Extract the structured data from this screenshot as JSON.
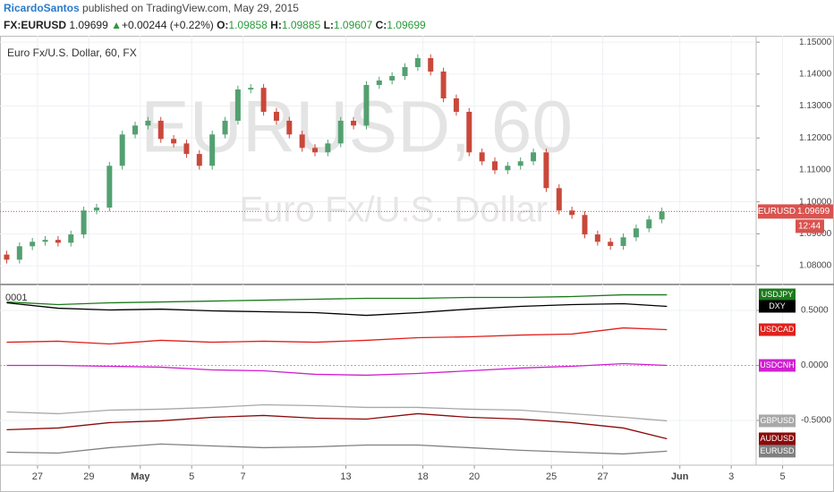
{
  "header": {
    "author": "RicardoSantos",
    "published": "published on TradingView.com, May 29, 2015",
    "symbol": "FX:EURUSD",
    "last": "1.09699",
    "change": "+0.00244 (+0.22%)",
    "o_label": "O:",
    "open": "1.09858",
    "h_label": "H:",
    "high": "1.09885",
    "l_label": "L:",
    "low": "1.09607",
    "c_label": "C:",
    "close": "1.09699"
  },
  "chart_data": [
    {
      "type": "candlestick",
      "title": "Euro Fx/U.S. Dollar, 60, FX",
      "watermark": "EURUSD, 60",
      "watermark_sub": "Euro Fx/U.S. Dollar",
      "up_color": "#53a070",
      "down_color": "#c9483a",
      "x": [
        -1.2,
        -0.7,
        -0.2,
        0.3,
        0.8,
        1.3,
        1.8,
        2.3,
        2.8,
        3.3,
        3.8,
        4.3,
        4.8,
        5.3,
        5.8,
        6.3,
        6.8,
        7.3,
        7.8,
        8.3,
        8.8,
        9.3,
        9.8,
        10.3,
        10.8,
        11.3,
        11.8,
        12.3,
        12.8,
        13.3,
        13.8,
        14.3,
        14.8,
        15.3,
        15.8,
        16.3,
        16.8,
        17.3,
        17.8,
        18.3,
        18.8,
        19.3,
        19.8,
        20.3,
        20.8,
        21.3,
        21.8,
        22.3,
        22.8,
        23.3,
        23.8,
        24.3
      ],
      "open": [
        1.0835,
        1.0819,
        1.0861,
        1.0875,
        1.0881,
        1.0872,
        1.0898,
        1.0973,
        1.0982,
        1.1113,
        1.1211,
        1.1239,
        1.1254,
        1.1197,
        1.1183,
        1.115,
        1.1113,
        1.1211,
        1.1254,
        1.1352,
        1.1357,
        1.1282,
        1.1254,
        1.1211,
        1.1169,
        1.1155,
        1.1183,
        1.1254,
        1.1239,
        1.1366,
        1.138,
        1.1394,
        1.1422,
        1.145,
        1.1408,
        1.1324,
        1.1282,
        1.1155,
        1.1127,
        1.1099,
        1.1113,
        1.1127,
        1.1155,
        1.1043,
        1.0973,
        1.0959,
        1.0898,
        1.0875,
        1.0862,
        1.0889,
        1.0917,
        1.0945
      ],
      "high": [
        1.0847,
        1.0873,
        1.0887,
        1.0893,
        1.0893,
        1.091,
        1.0985,
        1.0994,
        1.1125,
        1.1223,
        1.1251,
        1.1266,
        1.1266,
        1.1209,
        1.1195,
        1.1162,
        1.1223,
        1.1266,
        1.1364,
        1.1369,
        1.1369,
        1.1294,
        1.1266,
        1.1223,
        1.1181,
        1.1195,
        1.1266,
        1.1266,
        1.1378,
        1.1392,
        1.1406,
        1.1434,
        1.1462,
        1.1462,
        1.142,
        1.1336,
        1.1294,
        1.1167,
        1.1139,
        1.1125,
        1.1139,
        1.1167,
        1.1167,
        1.1055,
        1.0985,
        1.0971,
        1.091,
        1.0887,
        1.0901,
        1.0929,
        1.0957,
        1.0982
      ],
      "low": [
        1.0807,
        1.0807,
        1.0849,
        1.0863,
        1.086,
        1.086,
        1.0886,
        1.0961,
        1.097,
        1.1101,
        1.1199,
        1.1227,
        1.1185,
        1.1171,
        1.1138,
        1.1101,
        1.1101,
        1.1199,
        1.1242,
        1.134,
        1.127,
        1.1242,
        1.1199,
        1.1157,
        1.1143,
        1.1143,
        1.1171,
        1.1227,
        1.1227,
        1.1354,
        1.1368,
        1.1382,
        1.141,
        1.1396,
        1.1312,
        1.127,
        1.1143,
        1.1115,
        1.1087,
        1.1087,
        1.1101,
        1.1115,
        1.1031,
        1.0961,
        1.0947,
        1.0886,
        1.0863,
        1.085,
        1.085,
        1.0877,
        1.0905,
        1.0933
      ],
      "close": [
        1.0819,
        1.0861,
        1.0875,
        1.0881,
        1.0872,
        1.0898,
        1.0973,
        1.0982,
        1.1113,
        1.1211,
        1.1239,
        1.1254,
        1.1197,
        1.1183,
        1.115,
        1.1113,
        1.1211,
        1.1254,
        1.1352,
        1.1357,
        1.1282,
        1.1254,
        1.1211,
        1.1169,
        1.1155,
        1.1183,
        1.1254,
        1.1239,
        1.1366,
        1.138,
        1.1394,
        1.1422,
        1.145,
        1.1408,
        1.1324,
        1.1282,
        1.1155,
        1.1127,
        1.1099,
        1.1113,
        1.1127,
        1.1155,
        1.1043,
        1.0973,
        1.0959,
        1.0898,
        1.0875,
        1.0862,
        1.0889,
        1.0917,
        1.0945,
        1.097
      ],
      "last_symbol": "EURUSD",
      "last_price": 1.09699,
      "countdown": "12:44",
      "last_color": "#d9534f",
      "xlim": [
        -1.46,
        31.0
      ],
      "ylim": [
        1.0747,
        1.152
      ],
      "yticks": [
        {
          "value": 1.08,
          "label": "1.08000"
        },
        {
          "value": 1.09,
          "label": "1.09000"
        },
        {
          "value": 1.1,
          "label": "1.10000"
        },
        {
          "value": 1.11,
          "label": "1.11000"
        },
        {
          "value": 1.12,
          "label": "1.12000"
        },
        {
          "value": 1.13,
          "label": "1.13000"
        },
        {
          "value": 1.14,
          "label": "1.14000"
        },
        {
          "value": 1.15,
          "label": "1.15000"
        }
      ],
      "grid": true
    },
    {
      "type": "line",
      "label": "0001",
      "x": [
        -1.2,
        0.8,
        2.8,
        4.8,
        6.8,
        8.8,
        10.8,
        12.8,
        14.8,
        16.8,
        18.8,
        20.8,
        22.8,
        24.5
      ],
      "series": [
        {
          "name": "USDJPY",
          "color": "#1b7a1b",
          "values": [
            0.577,
            0.553,
            0.569,
            0.577,
            0.585,
            0.593,
            0.602,
            0.61,
            0.61,
            0.618,
            0.618,
            0.626,
            0.642,
            0.642
          ]
        },
        {
          "name": "DXY",
          "color": "#000000",
          "values": [
            0.569,
            0.52,
            0.504,
            0.512,
            0.496,
            0.488,
            0.48,
            0.455,
            0.48,
            0.512,
            0.537,
            0.553,
            0.561,
            0.537
          ]
        },
        {
          "name": "USDCAD",
          "color": "#e0201b",
          "values": [
            0.211,
            0.22,
            0.195,
            0.228,
            0.211,
            0.22,
            0.211,
            0.228,
            0.252,
            0.26,
            0.276,
            0.285,
            0.341,
            0.325
          ]
        },
        {
          "name": "USDCNH",
          "color": "#d020d0",
          "values": [
            0,
            0,
            -0.008,
            -0.016,
            -0.041,
            -0.049,
            -0.081,
            -0.089,
            -0.073,
            -0.049,
            -0.024,
            -0.008,
            0.016,
            0
          ]
        },
        {
          "name": "GBPUSD",
          "color": "#a8a8a8",
          "values": [
            -0.423,
            -0.439,
            -0.407,
            -0.398,
            -0.382,
            -0.358,
            -0.366,
            -0.382,
            -0.382,
            -0.398,
            -0.407,
            -0.439,
            -0.472,
            -0.504
          ]
        },
        {
          "name": "AUDUSD",
          "color": "#8b0a0a",
          "values": [
            -0.585,
            -0.569,
            -0.52,
            -0.504,
            -0.472,
            -0.455,
            -0.48,
            -0.488,
            -0.439,
            -0.472,
            -0.488,
            -0.52,
            -0.569,
            -0.667
          ]
        },
        {
          "name": "EURUSD",
          "color": "#808080",
          "values": [
            -0.789,
            -0.797,
            -0.748,
            -0.715,
            -0.732,
            -0.748,
            -0.74,
            -0.724,
            -0.724,
            -0.748,
            -0.772,
            -0.789,
            -0.805,
            -0.78
          ]
        }
      ],
      "xlim": [
        -1.46,
        31.0
      ],
      "ylim": [
        -0.907,
        0.736
      ],
      "yticks": [
        {
          "value": -0.5,
          "label": "-0.5000"
        },
        {
          "value": 0,
          "label": "0.0000"
        },
        {
          "value": 0.5,
          "label": "0.5000"
        }
      ],
      "xticks": [
        {
          "value": 0,
          "label": "27"
        },
        {
          "value": 2,
          "label": "29"
        },
        {
          "value": 4,
          "label": "May"
        },
        {
          "value": 6,
          "label": "5"
        },
        {
          "value": 8,
          "label": "7"
        },
        {
          "value": 12,
          "label": "13"
        },
        {
          "value": 15,
          "label": "18"
        },
        {
          "value": 17,
          "label": "20"
        },
        {
          "value": 20,
          "label": "25"
        },
        {
          "value": 22,
          "label": "27"
        },
        {
          "value": 25,
          "label": "Jun"
        },
        {
          "value": 27,
          "label": "3"
        },
        {
          "value": 29,
          "label": "5"
        }
      ],
      "grid": true
    }
  ]
}
